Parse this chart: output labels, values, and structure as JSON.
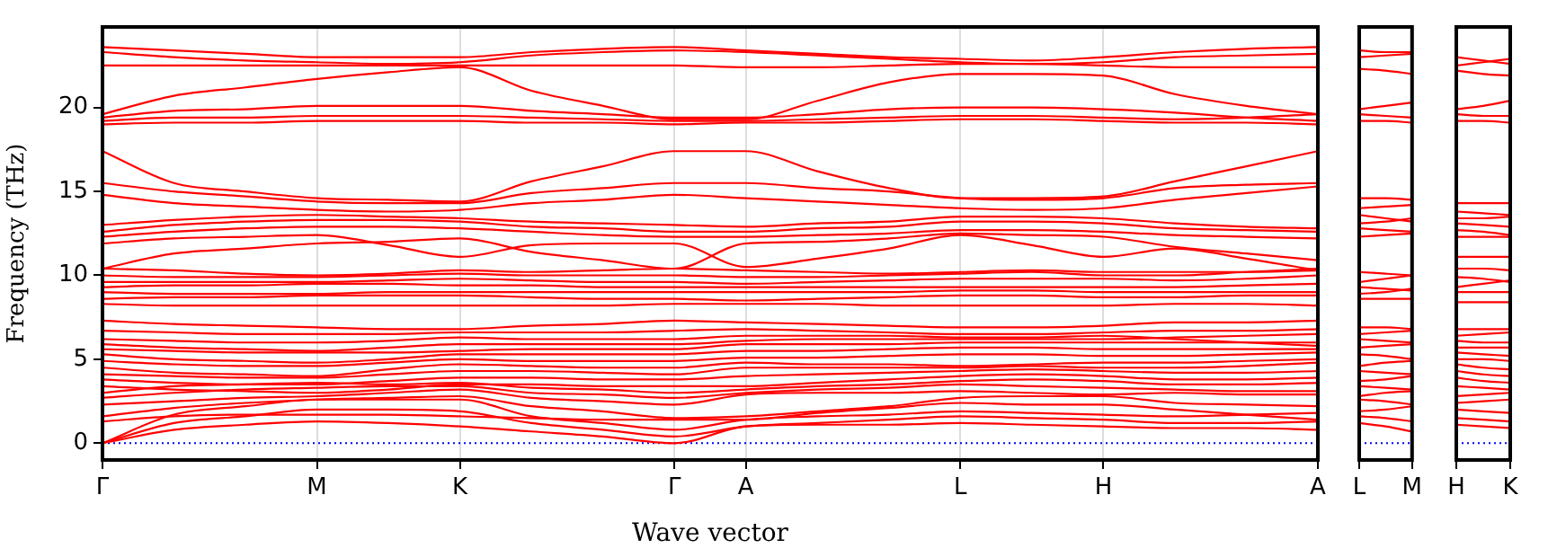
{
  "chart_data": [
    {
      "type": "line",
      "xlabel": "Wave vector",
      "ylabel": "Frequency (THz)",
      "ylim": [
        -1,
        24.8
      ],
      "categories": [
        "Γ",
        null,
        null,
        "M",
        null,
        "K",
        null,
        null,
        "Γ",
        "A",
        null,
        null,
        "L",
        null,
        "H",
        null,
        null,
        "A"
      ],
      "yticks": [
        0,
        5,
        10,
        15,
        20
      ],
      "grid": "x",
      "marker": "none",
      "line_style": "solid",
      "ref_lines": [
        {
          "axis": "y",
          "value": 0,
          "color": "#0000ff",
          "line_style": "dotted"
        }
      ],
      "series": [
        {
          "color": "#ff0000",
          "values": [
            0,
            0.8,
            1.1,
            1.3,
            1.2,
            1.0,
            0.7,
            0.4,
            0,
            1.0,
            1.1,
            1.1,
            1.2,
            1.1,
            1.0,
            0.9,
            0.9,
            0.8
          ]
        },
        {
          "color": "#ff0000",
          "values": [
            0,
            1.2,
            1.6,
            2.0,
            2.0,
            1.9,
            1.2,
            0.8,
            0.4,
            1.0,
            1.2,
            1.4,
            1.6,
            1.5,
            1.4,
            1.2,
            1.2,
            1.3
          ]
        },
        {
          "color": "#ff0000",
          "values": [
            0,
            1.7,
            2.2,
            2.6,
            2.6,
            2.6,
            1.6,
            1.2,
            0.8,
            1.4,
            1.6,
            1.7,
            1.9,
            1.8,
            1.7,
            1.6,
            1.7,
            1.8
          ]
        },
        {
          "color": "#ff0000",
          "values": [
            1.3,
            1.6,
            1.7,
            1.7,
            1.7,
            1.6,
            1.5,
            1.4,
            1.4,
            1.4,
            1.8,
            2.1,
            2.4,
            2.3,
            2.3,
            2.0,
            1.7,
            1.4
          ]
        },
        {
          "color": "#ff0000",
          "values": [
            1.6,
            2.1,
            2.4,
            2.6,
            2.7,
            2.8,
            2.2,
            1.9,
            1.5,
            1.6,
            1.9,
            2.2,
            2.7,
            2.8,
            2.8,
            2.4,
            2.3,
            2.2
          ]
        },
        {
          "color": "#ff0000",
          "values": [
            2.3,
            2.5,
            2.7,
            2.8,
            3.0,
            3.2,
            2.7,
            2.5,
            2.3,
            2.9,
            3.0,
            3.0,
            3.1,
            3.0,
            2.9,
            3.0,
            2.9,
            2.9
          ]
        },
        {
          "color": "#ff0000",
          "values": [
            2.7,
            3.0,
            3.2,
            3.3,
            3.4,
            3.4,
            3.0,
            2.9,
            2.7,
            3.0,
            3.2,
            3.3,
            3.5,
            3.4,
            3.3,
            3.2,
            3.1,
            3.1
          ]
        },
        {
          "color": "#ff0000",
          "values": [
            3.0,
            3.4,
            3.5,
            3.6,
            3.5,
            3.6,
            3.3,
            3.2,
            3.0,
            3.2,
            3.4,
            3.5,
            3.7,
            3.8,
            3.7,
            3.5,
            3.5,
            3.6
          ]
        },
        {
          "color": "#ff0000",
          "values": [
            3.4,
            3.2,
            3.1,
            3.0,
            3.2,
            3.5,
            3.5,
            3.4,
            3.4,
            3.4,
            3.6,
            3.8,
            4.0,
            4.1,
            4.0,
            3.8,
            3.8,
            3.9
          ]
        },
        {
          "color": "#ff0000",
          "values": [
            3.8,
            3.6,
            3.5,
            3.5,
            3.7,
            3.9,
            3.9,
            3.8,
            3.8,
            4.0,
            4.1,
            4.2,
            4.3,
            4.4,
            4.3,
            4.2,
            4.2,
            4.3
          ]
        },
        {
          "color": "#ff0000",
          "values": [
            4.1,
            4.0,
            3.9,
            3.9,
            4.1,
            4.3,
            4.3,
            4.2,
            4.1,
            4.5,
            4.5,
            4.5,
            4.5,
            4.6,
            4.5,
            4.5,
            4.6,
            4.8
          ]
        },
        {
          "color": "#ff0000",
          "values": [
            4.5,
            4.2,
            4.1,
            4.0,
            4.4,
            4.7,
            4.6,
            4.5,
            4.5,
            4.8,
            4.7,
            4.7,
            4.6,
            4.7,
            4.8,
            4.8,
            4.9,
            5.0
          ]
        },
        {
          "color": "#ff0000",
          "values": [
            4.9,
            4.7,
            4.6,
            4.6,
            4.8,
            5.0,
            4.9,
            4.9,
            4.9,
            5.1,
            5.1,
            5.2,
            5.3,
            5.3,
            5.2,
            5.2,
            5.3,
            5.4
          ]
        },
        {
          "color": "#ff0000",
          "values": [
            5.3,
            5.0,
            4.9,
            4.8,
            5.0,
            5.3,
            5.3,
            5.3,
            5.3,
            5.5,
            5.5,
            5.6,
            5.7,
            5.7,
            5.6,
            5.6,
            5.6,
            5.6
          ]
        },
        {
          "color": "#ff0000",
          "values": [
            5.6,
            5.5,
            5.4,
            5.4,
            5.4,
            5.5,
            5.6,
            5.6,
            5.6,
            5.9,
            5.9,
            5.9,
            6.0,
            6.0,
            6.0,
            6.0,
            6.0,
            6.0
          ]
        },
        {
          "color": "#ff0000",
          "values": [
            5.9,
            5.7,
            5.6,
            5.5,
            5.7,
            5.9,
            5.9,
            5.9,
            5.9,
            6.1,
            6.2,
            6.2,
            6.2,
            6.2,
            6.2,
            6.3,
            6.4,
            6.5
          ]
        },
        {
          "color": "#ff0000",
          "values": [
            6.2,
            6.1,
            6.0,
            6.0,
            6.1,
            6.3,
            6.2,
            6.2,
            6.2,
            6.4,
            6.4,
            6.4,
            6.3,
            6.3,
            6.4,
            6.2,
            6.0,
            5.8
          ]
        },
        {
          "color": "#ff0000",
          "values": [
            6.7,
            6.6,
            6.5,
            6.5,
            6.5,
            6.6,
            6.6,
            6.6,
            6.7,
            6.8,
            6.7,
            6.6,
            6.5,
            6.5,
            6.6,
            6.7,
            6.7,
            6.8
          ]
        },
        {
          "color": "#ff0000",
          "values": [
            7.3,
            7.1,
            7.0,
            6.9,
            6.8,
            6.8,
            7.0,
            7.1,
            7.3,
            7.2,
            7.1,
            7.0,
            6.9,
            6.9,
            7.0,
            7.2,
            7.2,
            7.3
          ]
        },
        {
          "color": "#ff0000",
          "values": [
            8.3,
            8.2,
            8.2,
            8.2,
            8.2,
            8.2,
            8.2,
            8.2,
            8.3,
            8.3,
            8.3,
            8.2,
            8.2,
            8.2,
            8.2,
            8.3,
            8.3,
            8.2
          ]
        },
        {
          "color": "#ff0000",
          "values": [
            8.6,
            8.7,
            8.7,
            8.8,
            8.8,
            8.8,
            8.7,
            8.6,
            8.6,
            8.5,
            8.6,
            8.7,
            8.8,
            8.8,
            8.7,
            8.7,
            8.8,
            8.8
          ]
        },
        {
          "color": "#ff0000",
          "values": [
            9.0,
            8.9,
            8.9,
            8.9,
            9.0,
            9.0,
            9.0,
            9.0,
            9.0,
            9.0,
            9.0,
            9.0,
            9.1,
            9.1,
            9.0,
            9.0,
            9.0,
            9.0
          ]
        },
        {
          "color": "#ff0000",
          "values": [
            9.3,
            9.4,
            9.4,
            9.5,
            9.5,
            9.4,
            9.4,
            9.3,
            9.3,
            9.3,
            9.3,
            9.3,
            9.3,
            9.3,
            9.3,
            9.3,
            9.4,
            9.5
          ]
        },
        {
          "color": "#ff0000",
          "values": [
            9.6,
            9.6,
            9.6,
            9.6,
            9.7,
            9.8,
            9.7,
            9.6,
            9.6,
            9.5,
            9.6,
            9.7,
            9.8,
            9.8,
            9.8,
            9.7,
            9.8,
            10.0
          ]
        },
        {
          "color": "#ff0000",
          "values": [
            10.0,
            9.9,
            9.9,
            9.9,
            10.0,
            10.1,
            10.0,
            10.0,
            10.0,
            9.9,
            9.9,
            10.0,
            10.1,
            10.2,
            10.0,
            10.0,
            10.2,
            10.4
          ]
        },
        {
          "color": "#ff0000",
          "values": [
            10.4,
            10.3,
            10.1,
            10.0,
            10.1,
            10.3,
            10.2,
            10.3,
            10.4,
            10.3,
            10.2,
            10.1,
            10.2,
            10.3,
            10.2,
            10.2,
            10.2,
            10.3
          ]
        },
        {
          "color": "#ff0000",
          "values": [
            10.4,
            11.3,
            11.6,
            11.9,
            12.0,
            12.2,
            11.4,
            10.9,
            10.4,
            11.9,
            12.0,
            12.2,
            12.5,
            12.4,
            12.3,
            11.7,
            11.3,
            10.9
          ]
        },
        {
          "color": "#ff0000",
          "values": [
            11.9,
            12.2,
            12.3,
            12.4,
            11.8,
            11.1,
            11.8,
            11.9,
            11.9,
            10.5,
            11.0,
            11.6,
            12.4,
            11.8,
            11.1,
            11.6,
            11.0,
            10.3
          ]
        },
        {
          "color": "#ff0000",
          "values": [
            12.3,
            12.6,
            12.8,
            12.9,
            12.9,
            12.8,
            12.6,
            12.4,
            12.3,
            12.3,
            12.4,
            12.5,
            12.7,
            12.7,
            12.6,
            12.4,
            12.3,
            12.2
          ]
        },
        {
          "color": "#ff0000",
          "values": [
            12.6,
            13.0,
            13.2,
            13.3,
            13.3,
            13.2,
            12.9,
            12.8,
            12.6,
            12.6,
            12.8,
            12.9,
            13.2,
            13.2,
            13.1,
            12.8,
            12.7,
            12.6
          ]
        },
        {
          "color": "#ff0000",
          "values": [
            13.0,
            13.3,
            13.5,
            13.6,
            13.5,
            13.4,
            13.2,
            13.1,
            13.0,
            12.9,
            13.1,
            13.2,
            13.5,
            13.5,
            13.4,
            13.1,
            12.9,
            12.8
          ]
        },
        {
          "color": "#ff0000",
          "values": [
            14.8,
            14.3,
            14.1,
            13.9,
            13.8,
            13.9,
            14.3,
            14.5,
            14.8,
            14.6,
            14.4,
            14.2,
            14.0,
            13.9,
            14.0,
            14.5,
            14.9,
            15.3
          ]
        },
        {
          "color": "#ff0000",
          "values": [
            15.5,
            15.0,
            14.7,
            14.4,
            14.3,
            14.3,
            14.9,
            15.2,
            15.5,
            15.5,
            15.2,
            15.0,
            14.6,
            14.5,
            14.6,
            15.2,
            15.4,
            15.5
          ]
        },
        {
          "color": "#ff0000",
          "values": [
            17.4,
            15.5,
            15.0,
            14.6,
            14.5,
            14.4,
            15.6,
            16.5,
            17.4,
            17.4,
            16.2,
            15.2,
            14.6,
            14.6,
            14.7,
            15.6,
            16.5,
            17.4
          ]
        },
        {
          "color": "#ff0000",
          "values": [
            19.0,
            19.1,
            19.1,
            19.2,
            19.2,
            19.2,
            19.1,
            19.1,
            19.0,
            19.1,
            19.1,
            19.2,
            19.3,
            19.3,
            19.2,
            19.1,
            19.1,
            19.0
          ]
        },
        {
          "color": "#ff0000",
          "values": [
            19.2,
            19.4,
            19.4,
            19.5,
            19.5,
            19.5,
            19.4,
            19.3,
            19.2,
            19.2,
            19.3,
            19.4,
            19.5,
            19.5,
            19.4,
            19.3,
            19.4,
            19.6
          ]
        },
        {
          "color": "#ff0000",
          "values": [
            19.4,
            19.8,
            19.9,
            20.1,
            20.1,
            20.1,
            19.8,
            19.6,
            19.4,
            19.4,
            19.6,
            19.9,
            20.0,
            20.0,
            19.9,
            19.7,
            19.4,
            19.2
          ]
        },
        {
          "color": "#ff0000",
          "values": [
            19.6,
            20.7,
            21.2,
            21.7,
            22.1,
            22.4,
            21.0,
            20.1,
            19.3,
            19.3,
            20.4,
            21.5,
            22.0,
            22.0,
            21.9,
            20.8,
            20.1,
            19.6
          ]
        },
        {
          "color": "#ff0000",
          "values": [
            22.5,
            22.5,
            22.5,
            22.5,
            22.5,
            22.5,
            22.5,
            22.5,
            22.5,
            22.4,
            22.4,
            22.5,
            22.6,
            22.6,
            22.5,
            22.4,
            22.4,
            22.4
          ]
        },
        {
          "color": "#ff0000",
          "values": [
            23.3,
            23.0,
            22.8,
            22.7,
            22.6,
            22.7,
            23.1,
            23.3,
            23.4,
            23.3,
            23.1,
            22.9,
            22.7,
            22.6,
            22.7,
            23.0,
            23.1,
            23.2
          ]
        },
        {
          "color": "#ff0000",
          "values": [
            23.6,
            23.4,
            23.2,
            23.0,
            23.0,
            23.0,
            23.3,
            23.5,
            23.6,
            23.4,
            23.2,
            23.0,
            22.9,
            22.8,
            23.0,
            23.3,
            23.5,
            23.6
          ]
        }
      ]
    },
    {
      "type": "line",
      "ylim": [
        -1,
        24.8
      ],
      "tick_labels": "x",
      "categories": [
        "L",
        null,
        "M"
      ],
      "yticks": [
        0,
        5,
        10,
        15,
        20
      ],
      "marker": "none",
      "line_style": "solid",
      "ref_lines": [
        {
          "axis": "y",
          "value": 0,
          "color": "#0000ff",
          "line_style": "dotted"
        }
      ],
      "series": [
        {
          "color": "#ff0000",
          "values": [
            23.4,
            23.3,
            23.3
          ]
        },
        {
          "color": "#ff0000",
          "values": [
            23.0,
            23.1,
            23.2
          ]
        },
        {
          "color": "#ff0000",
          "values": [
            22.3,
            22.2,
            22.0
          ]
        },
        {
          "color": "#ff0000",
          "values": [
            19.9,
            20.1,
            20.3
          ]
        },
        {
          "color": "#ff0000",
          "values": [
            19.6,
            19.5,
            19.4
          ]
        },
        {
          "color": "#ff0000",
          "values": [
            19.2,
            19.2,
            19.1
          ]
        },
        {
          "color": "#ff0000",
          "values": [
            14.6,
            14.6,
            14.5
          ]
        },
        {
          "color": "#ff0000",
          "values": [
            14.0,
            14.1,
            14.2
          ]
        },
        {
          "color": "#ff0000",
          "values": [
            13.6,
            13.4,
            13.2
          ]
        },
        {
          "color": "#ff0000",
          "values": [
            13.1,
            13.2,
            13.4
          ]
        },
        {
          "color": "#ff0000",
          "values": [
            12.8,
            12.7,
            12.6
          ]
        },
        {
          "color": "#ff0000",
          "values": [
            12.3,
            12.4,
            12.5
          ]
        },
        {
          "color": "#ff0000",
          "values": [
            10.2,
            10.1,
            10.0
          ]
        },
        {
          "color": "#ff0000",
          "values": [
            9.6,
            9.8,
            10.0
          ]
        },
        {
          "color": "#ff0000",
          "values": [
            9.3,
            9.2,
            9.1
          ]
        },
        {
          "color": "#ff0000",
          "values": [
            8.9,
            9.0,
            9.2
          ]
        },
        {
          "color": "#ff0000",
          "values": [
            8.6,
            8.6,
            8.6
          ]
        },
        {
          "color": "#ff0000",
          "values": [
            6.9,
            6.9,
            6.8
          ]
        },
        {
          "color": "#ff0000",
          "values": [
            6.5,
            6.6,
            6.7
          ]
        },
        {
          "color": "#ff0000",
          "values": [
            6.2,
            6.1,
            6.0
          ]
        },
        {
          "color": "#ff0000",
          "values": [
            5.7,
            5.8,
            5.9
          ]
        },
        {
          "color": "#ff0000",
          "values": [
            5.3,
            5.2,
            5.0
          ]
        },
        {
          "color": "#ff0000",
          "values": [
            4.6,
            4.8,
            4.9
          ]
        },
        {
          "color": "#ff0000",
          "values": [
            4.3,
            4.2,
            4.1
          ]
        },
        {
          "color": "#ff0000",
          "values": [
            3.7,
            3.8,
            4.0
          ]
        },
        {
          "color": "#ff0000",
          "values": [
            3.4,
            3.3,
            3.2
          ]
        },
        {
          "color": "#ff0000",
          "values": [
            2.8,
            3.0,
            3.1
          ]
        },
        {
          "color": "#ff0000",
          "values": [
            2.6,
            2.5,
            2.3
          ]
        },
        {
          "color": "#ff0000",
          "values": [
            1.9,
            2.0,
            2.2
          ]
        },
        {
          "color": "#ff0000",
          "values": [
            1.6,
            1.5,
            1.3
          ]
        },
        {
          "color": "#ff0000",
          "values": [
            1.2,
            1.0,
            0.7
          ]
        }
      ]
    },
    {
      "type": "line",
      "ylim": [
        -1,
        24.8
      ],
      "tick_labels": "x",
      "categories": [
        "H",
        null,
        "K"
      ],
      "yticks": [
        0,
        5,
        10,
        15,
        20
      ],
      "marker": "none",
      "line_style": "solid",
      "ref_lines": [
        {
          "axis": "y",
          "value": 0,
          "color": "#0000ff",
          "line_style": "dotted"
        }
      ],
      "series": [
        {
          "color": "#ff0000",
          "values": [
            23.0,
            22.8,
            22.6
          ]
        },
        {
          "color": "#ff0000",
          "values": [
            22.5,
            22.7,
            22.9
          ]
        },
        {
          "color": "#ff0000",
          "values": [
            22.2,
            22.0,
            21.9
          ]
        },
        {
          "color": "#ff0000",
          "values": [
            19.9,
            20.1,
            20.4
          ]
        },
        {
          "color": "#ff0000",
          "values": [
            19.6,
            19.5,
            19.5
          ]
        },
        {
          "color": "#ff0000",
          "values": [
            19.2,
            19.2,
            19.1
          ]
        },
        {
          "color": "#ff0000",
          "values": [
            14.3,
            14.3,
            14.3
          ]
        },
        {
          "color": "#ff0000",
          "values": [
            13.8,
            13.7,
            13.6
          ]
        },
        {
          "color": "#ff0000",
          "values": [
            13.4,
            13.4,
            13.5
          ]
        },
        {
          "color": "#ff0000",
          "values": [
            13.1,
            13.0,
            12.9
          ]
        },
        {
          "color": "#ff0000",
          "values": [
            12.7,
            12.6,
            12.4
          ]
        },
        {
          "color": "#ff0000",
          "values": [
            12.3,
            12.3,
            12.3
          ]
        },
        {
          "color": "#ff0000",
          "values": [
            11.1,
            11.1,
            11.1
          ]
        },
        {
          "color": "#ff0000",
          "values": [
            10.4,
            10.4,
            10.3
          ]
        },
        {
          "color": "#ff0000",
          "values": [
            9.9,
            9.8,
            9.6
          ]
        },
        {
          "color": "#ff0000",
          "values": [
            9.3,
            9.5,
            9.7
          ]
        },
        {
          "color": "#ff0000",
          "values": [
            9.0,
            9.0,
            9.0
          ]
        },
        {
          "color": "#ff0000",
          "values": [
            8.4,
            8.4,
            8.4
          ]
        },
        {
          "color": "#ff0000",
          "values": [
            6.8,
            6.8,
            6.8
          ]
        },
        {
          "color": "#ff0000",
          "values": [
            6.4,
            6.5,
            6.6
          ]
        },
        {
          "color": "#ff0000",
          "values": [
            6.1,
            6.0,
            6.0
          ]
        },
        {
          "color": "#ff0000",
          "values": [
            5.7,
            5.7,
            5.7
          ]
        },
        {
          "color": "#ff0000",
          "values": [
            5.4,
            5.3,
            5.2
          ]
        },
        {
          "color": "#ff0000",
          "values": [
            5.0,
            5.0,
            4.9
          ]
        },
        {
          "color": "#ff0000",
          "values": [
            4.7,
            4.5,
            4.4
          ]
        },
        {
          "color": "#ff0000",
          "values": [
            4.3,
            4.1,
            4.0
          ]
        },
        {
          "color": "#ff0000",
          "values": [
            3.9,
            3.7,
            3.6
          ]
        },
        {
          "color": "#ff0000",
          "values": [
            3.4,
            3.3,
            3.2
          ]
        },
        {
          "color": "#ff0000",
          "values": [
            2.8,
            2.9,
            3.0
          ]
        },
        {
          "color": "#ff0000",
          "values": [
            2.4,
            2.5,
            2.6
          ]
        },
        {
          "color": "#ff0000",
          "values": [
            2.0,
            1.9,
            1.8
          ]
        },
        {
          "color": "#ff0000",
          "values": [
            1.5,
            1.4,
            1.3
          ]
        },
        {
          "color": "#ff0000",
          "values": [
            1.1,
            1.0,
            0.9
          ]
        }
      ]
    }
  ]
}
